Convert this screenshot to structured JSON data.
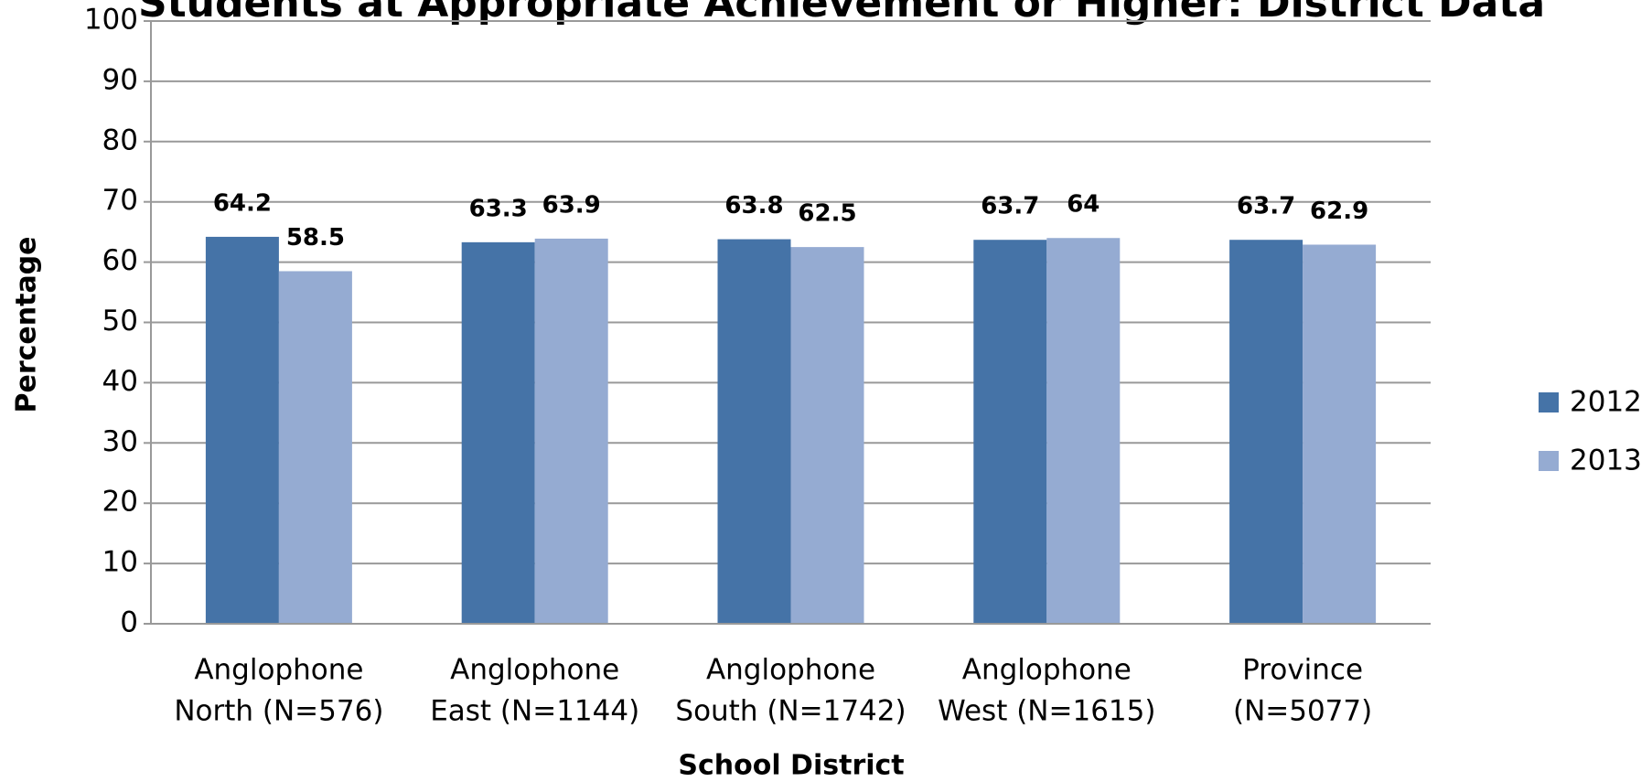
{
  "chart_data": {
    "type": "bar",
    "title": "Students at Appropriate Achievement or Higher: District Data",
    "x_label": "School District",
    "y_label": "Percentage",
    "categories": [
      [
        "Anglophone",
        "North (N=576)"
      ],
      [
        "Anglophone",
        "East (N=1144)"
      ],
      [
        "Anglophone",
        "South (N=1742)"
      ],
      [
        "Anglophone",
        "West (N=1615)"
      ],
      [
        "Province",
        "(N=5077)"
      ]
    ],
    "series": [
      {
        "name": "2012",
        "color": "#4573a7",
        "values": [
          64.2,
          63.3,
          63.8,
          63.7,
          63.7
        ]
      },
      {
        "name": "2013",
        "color": "#95abd2",
        "values": [
          58.5,
          63.9,
          62.5,
          64,
          62.9
        ]
      }
    ],
    "ylim": [
      0,
      100
    ],
    "yticks": [
      0,
      10,
      20,
      30,
      40,
      50,
      60,
      70,
      80,
      90,
      100
    ],
    "grid": true,
    "legend": "right"
  }
}
